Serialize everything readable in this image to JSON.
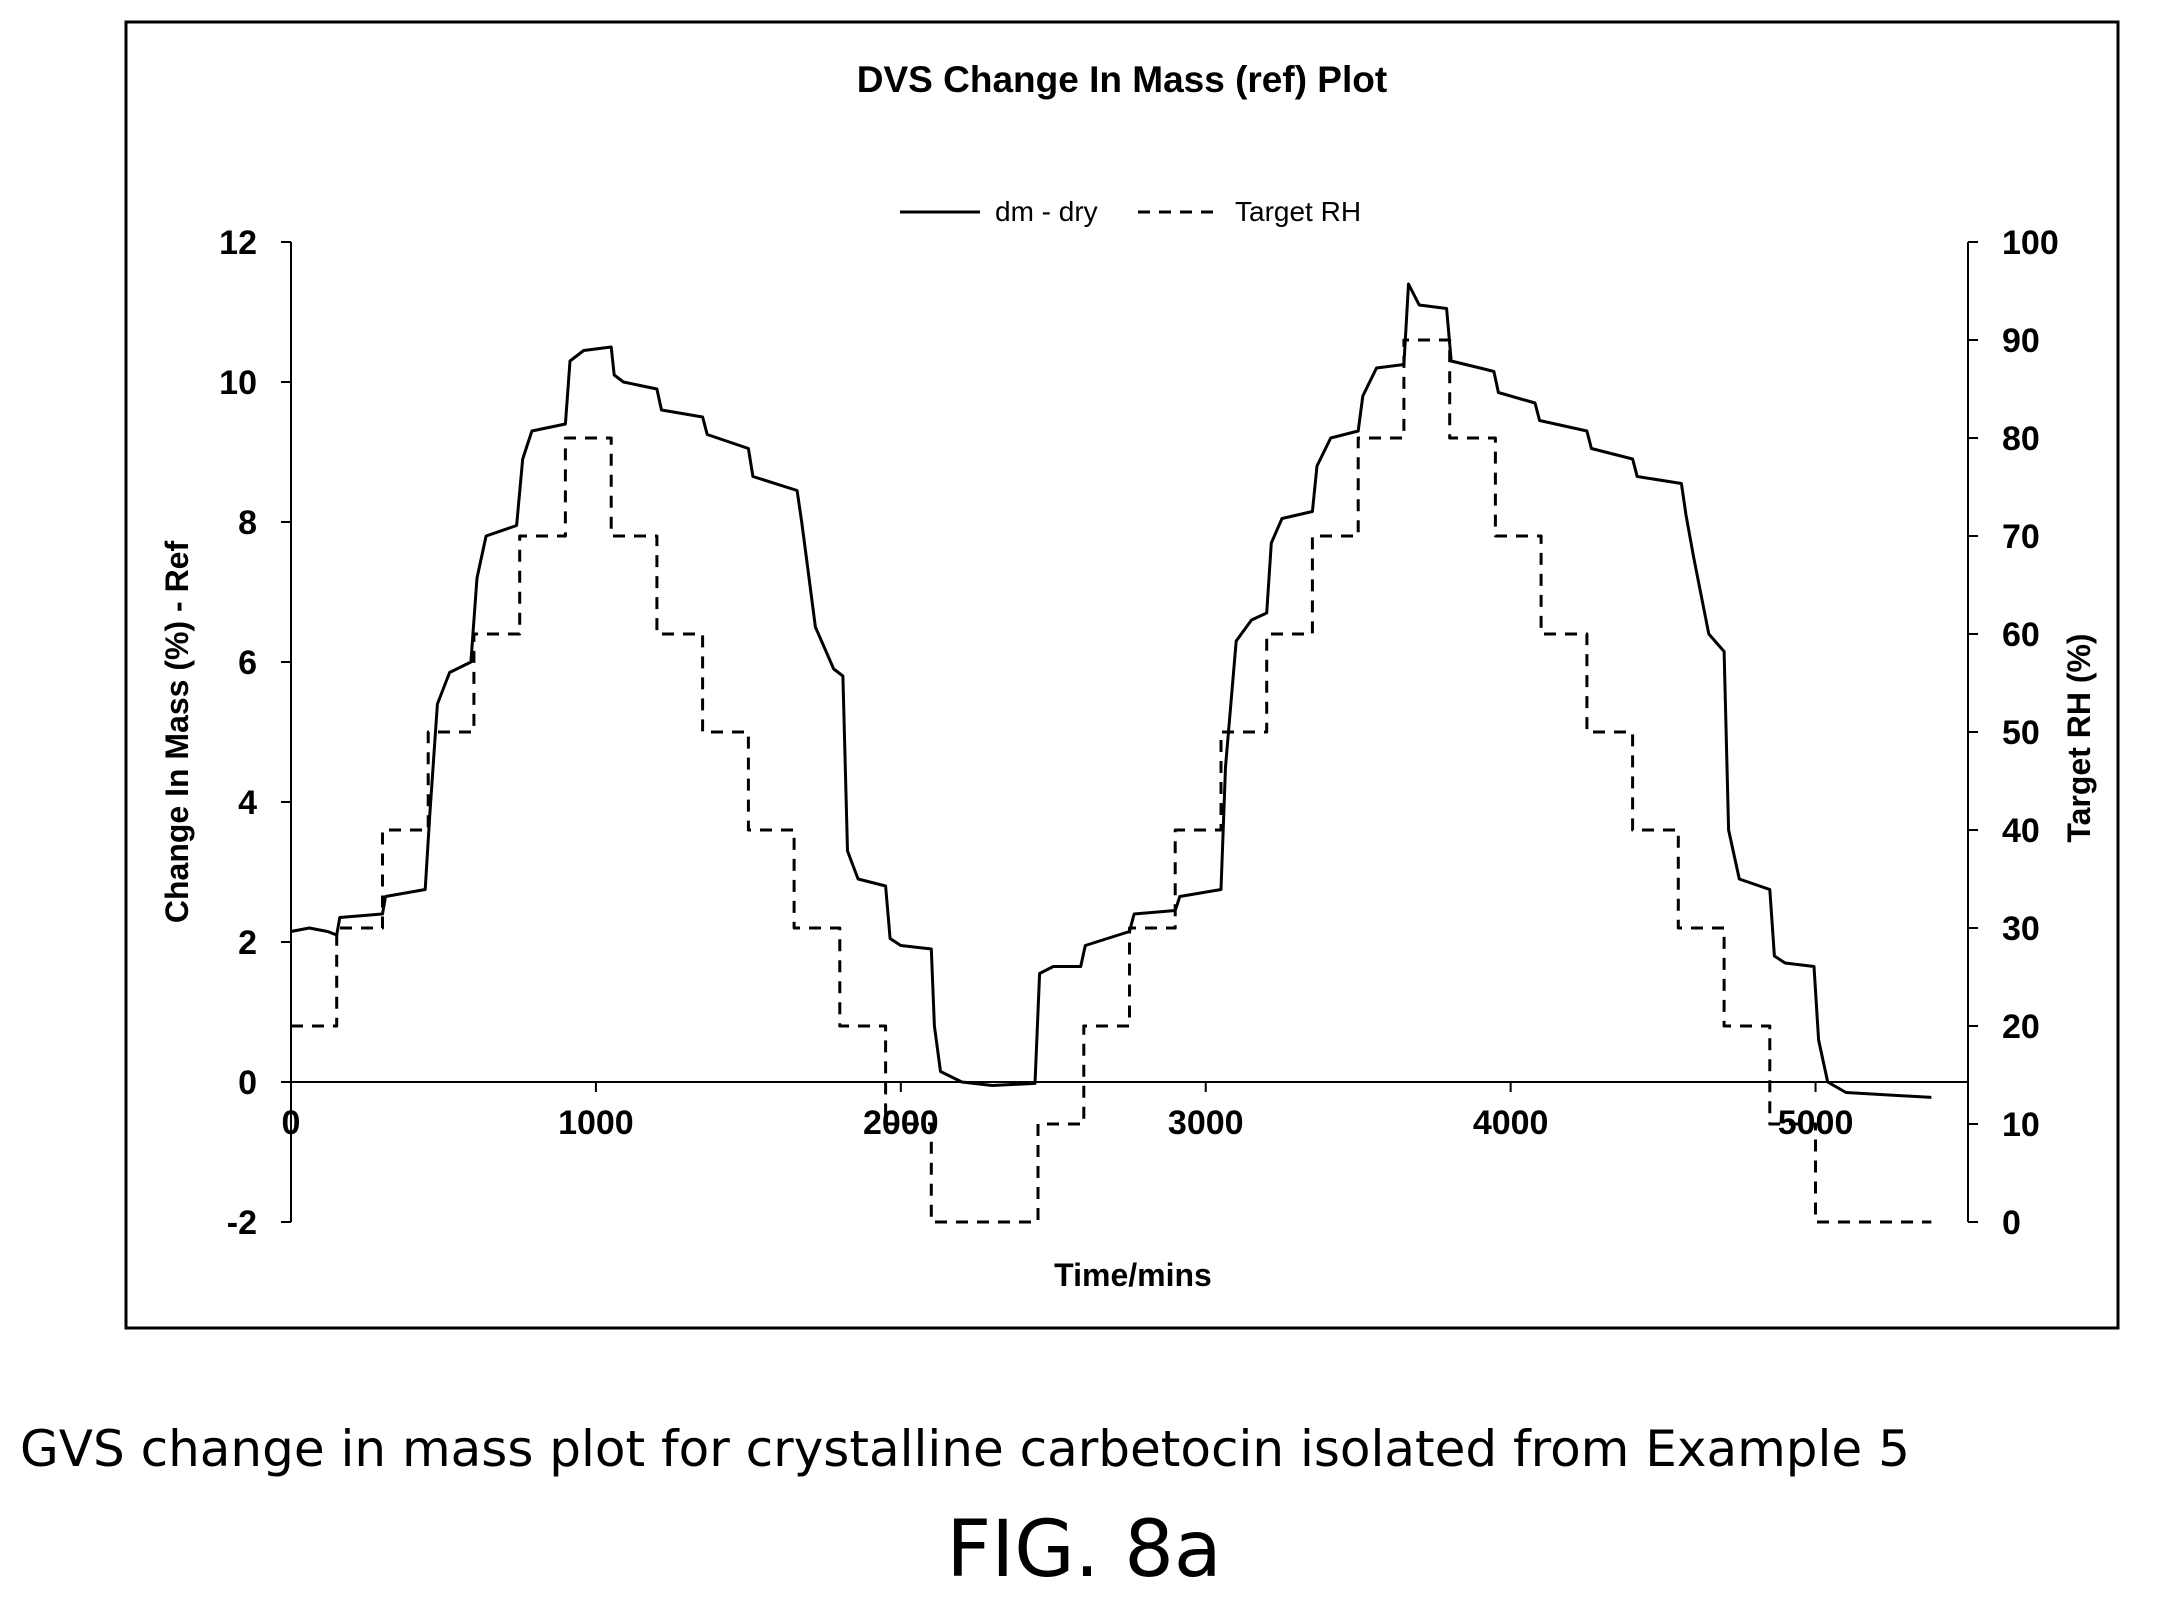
{
  "chart_data": {
    "type": "line",
    "title": "DVS Change In Mass (ref) Plot",
    "xlabel": "Time/mins",
    "ylabel_left": "Change In Mass (%) - Ref",
    "ylabel_right": "Target RH (%)",
    "xlim": [
      0,
      5500
    ],
    "ylim_left": [
      -2,
      12
    ],
    "ylim_right": [
      0,
      100
    ],
    "xticks": [
      0,
      1000,
      2000,
      3000,
      4000,
      5000
    ],
    "yticks_left": [
      -2,
      0,
      2,
      4,
      6,
      8,
      10,
      12
    ],
    "yticks_right": [
      0,
      10,
      20,
      30,
      40,
      50,
      60,
      70,
      80,
      90,
      100
    ],
    "legend_position": "top-center",
    "grid": false,
    "series": [
      {
        "name": "dm - dry",
        "axis": "left",
        "style": "solid",
        "color": "#000000",
        "points": [
          [
            0,
            2.15
          ],
          [
            60,
            2.2
          ],
          [
            120,
            2.15
          ],
          [
            150,
            2.1
          ],
          [
            160,
            2.35
          ],
          [
            300,
            2.4
          ],
          [
            310,
            2.65
          ],
          [
            440,
            2.75
          ],
          [
            455,
            3.8
          ],
          [
            480,
            5.4
          ],
          [
            520,
            5.85
          ],
          [
            590,
            6.0
          ],
          [
            610,
            7.2
          ],
          [
            640,
            7.8
          ],
          [
            740,
            7.95
          ],
          [
            760,
            8.9
          ],
          [
            790,
            9.3
          ],
          [
            900,
            9.4
          ],
          [
            915,
            10.3
          ],
          [
            960,
            10.45
          ],
          [
            1050,
            10.5
          ],
          [
            1060,
            10.1
          ],
          [
            1090,
            10.0
          ],
          [
            1200,
            9.9
          ],
          [
            1215,
            9.6
          ],
          [
            1350,
            9.5
          ],
          [
            1365,
            9.25
          ],
          [
            1500,
            9.05
          ],
          [
            1515,
            8.65
          ],
          [
            1660,
            8.45
          ],
          [
            1675,
            8.0
          ],
          [
            1690,
            7.5
          ],
          [
            1720,
            6.5
          ],
          [
            1780,
            5.9
          ],
          [
            1810,
            5.8
          ],
          [
            1825,
            3.3
          ],
          [
            1860,
            2.9
          ],
          [
            1950,
            2.8
          ],
          [
            1965,
            2.05
          ],
          [
            2000,
            1.95
          ],
          [
            2100,
            1.9
          ],
          [
            2110,
            0.8
          ],
          [
            2130,
            0.15
          ],
          [
            2200,
            0.0
          ],
          [
            2300,
            -0.05
          ],
          [
            2440,
            -0.02
          ],
          [
            2455,
            1.55
          ],
          [
            2500,
            1.65
          ],
          [
            2590,
            1.65
          ],
          [
            2605,
            1.95
          ],
          [
            2750,
            2.15
          ],
          [
            2765,
            2.4
          ],
          [
            2900,
            2.45
          ],
          [
            2915,
            2.65
          ],
          [
            3050,
            2.75
          ],
          [
            3065,
            4.5
          ],
          [
            3100,
            6.3
          ],
          [
            3150,
            6.6
          ],
          [
            3200,
            6.7
          ],
          [
            3215,
            7.7
          ],
          [
            3250,
            8.05
          ],
          [
            3350,
            8.15
          ],
          [
            3365,
            8.8
          ],
          [
            3410,
            9.2
          ],
          [
            3500,
            9.3
          ],
          [
            3515,
            9.8
          ],
          [
            3560,
            10.2
          ],
          [
            3650,
            10.25
          ],
          [
            3665,
            11.4
          ],
          [
            3700,
            11.1
          ],
          [
            3790,
            11.05
          ],
          [
            3805,
            10.3
          ],
          [
            3900,
            10.2
          ],
          [
            3945,
            10.15
          ],
          [
            3960,
            9.85
          ],
          [
            4080,
            9.7
          ],
          [
            4095,
            9.45
          ],
          [
            4250,
            9.3
          ],
          [
            4265,
            9.05
          ],
          [
            4400,
            8.9
          ],
          [
            4415,
            8.65
          ],
          [
            4560,
            8.55
          ],
          [
            4575,
            8.1
          ],
          [
            4600,
            7.5
          ],
          [
            4650,
            6.4
          ],
          [
            4700,
            6.15
          ],
          [
            4715,
            3.6
          ],
          [
            4750,
            2.9
          ],
          [
            4850,
            2.75
          ],
          [
            4865,
            1.8
          ],
          [
            4900,
            1.7
          ],
          [
            4995,
            1.65
          ],
          [
            5010,
            0.6
          ],
          [
            5040,
            0.0
          ],
          [
            5100,
            -0.15
          ],
          [
            5380,
            -0.22
          ]
        ]
      },
      {
        "name": "Target RH",
        "axis": "right",
        "style": "dashed",
        "color": "#000000",
        "points": [
          [
            0,
            20
          ],
          [
            150,
            20
          ],
          [
            150,
            30
          ],
          [
            300,
            30
          ],
          [
            300,
            40
          ],
          [
            450,
            40
          ],
          [
            450,
            50
          ],
          [
            600,
            50
          ],
          [
            600,
            60
          ],
          [
            750,
            60
          ],
          [
            750,
            70
          ],
          [
            900,
            70
          ],
          [
            900,
            80
          ],
          [
            1050,
            80
          ],
          [
            1050,
            70
          ],
          [
            1200,
            70
          ],
          [
            1200,
            60
          ],
          [
            1350,
            60
          ],
          [
            1350,
            50
          ],
          [
            1500,
            50
          ],
          [
            1500,
            40
          ],
          [
            1650,
            40
          ],
          [
            1650,
            30
          ],
          [
            1800,
            30
          ],
          [
            1800,
            20
          ],
          [
            1950,
            20
          ],
          [
            1950,
            10
          ],
          [
            2100,
            10
          ],
          [
            2100,
            0
          ],
          [
            2450,
            0
          ],
          [
            2450,
            10
          ],
          [
            2600,
            10
          ],
          [
            2600,
            20
          ],
          [
            2750,
            20
          ],
          [
            2750,
            30
          ],
          [
            2900,
            30
          ],
          [
            2900,
            40
          ],
          [
            3050,
            40
          ],
          [
            3050,
            50
          ],
          [
            3200,
            50
          ],
          [
            3200,
            60
          ],
          [
            3350,
            60
          ],
          [
            3350,
            70
          ],
          [
            3500,
            70
          ],
          [
            3500,
            80
          ],
          [
            3650,
            80
          ],
          [
            3650,
            90
          ],
          [
            3800,
            90
          ],
          [
            3800,
            80
          ],
          [
            3950,
            80
          ],
          [
            3950,
            70
          ],
          [
            4100,
            70
          ],
          [
            4100,
            60
          ],
          [
            4250,
            60
          ],
          [
            4250,
            50
          ],
          [
            4400,
            50
          ],
          [
            4400,
            40
          ],
          [
            4550,
            40
          ],
          [
            4550,
            30
          ],
          [
            4700,
            30
          ],
          [
            4700,
            20
          ],
          [
            4850,
            20
          ],
          [
            4850,
            10
          ],
          [
            5000,
            10
          ],
          [
            5000,
            0
          ],
          [
            5380,
            0
          ]
        ]
      }
    ]
  },
  "caption": "GVS change in mass plot  for crystalline carbetocin isolated from Example 5",
  "figure_label": "FIG. 8a"
}
